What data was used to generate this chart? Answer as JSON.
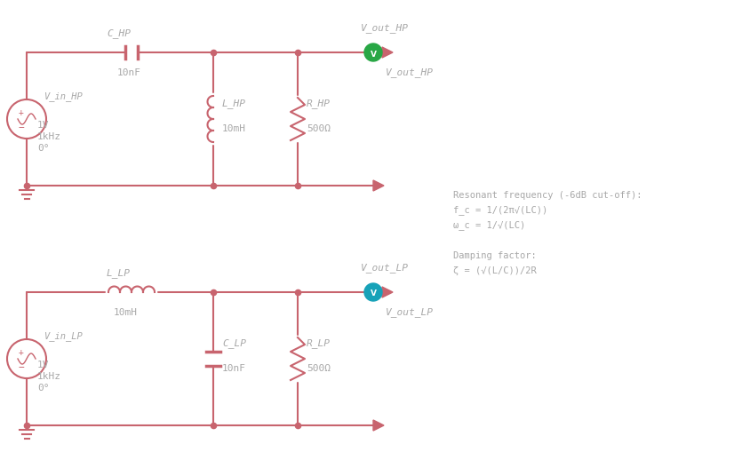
{
  "bg_color": "#ffffff",
  "circuit_color": "#c8646e",
  "dot_color": "#c8646e",
  "text_color": "#a8a8a8",
  "green_probe": "#28a745",
  "blue_probe": "#17a2b8",
  "formula_color": "#a8a8a8",
  "formulas": {
    "line1": "Resonant frequency (-6dB cut-off):",
    "line2": "f_c = 1/(2π√(LC))",
    "line3": "ω_c = 1/√(LC)",
    "line4": "",
    "line5": "Damping factor:",
    "line6": "ζ = (√(L/C))/2R"
  }
}
